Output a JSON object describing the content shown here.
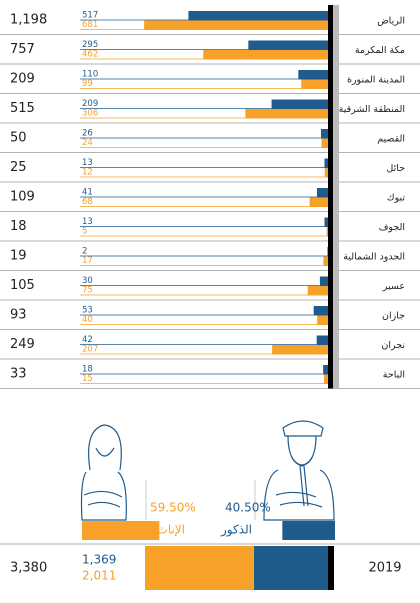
{
  "chart_data": {
    "type": "paired-bar",
    "categories": [
      "الرياض",
      "مكة المكرمة",
      "المدينة المنورة",
      "المنطقة الشرقية",
      "القصيم",
      "حائل",
      "تبوك",
      "الجوف",
      "الحدود الشمالية",
      "عسير",
      "جازان",
      "نجران",
      "الباحة"
    ],
    "totals": [
      1198,
      757,
      209,
      515,
      50,
      25,
      109,
      18,
      19,
      105,
      93,
      249,
      33
    ],
    "total_labels": [
      "1,198",
      "757",
      "209",
      "515",
      "50",
      "25",
      "109",
      "18",
      "19",
      "105",
      "93",
      "249",
      "33"
    ],
    "series": [
      {
        "name": "الذكور",
        "color": "#1f5b8c",
        "values": [
          517,
          295,
          110,
          209,
          26,
          13,
          41,
          13,
          2,
          30,
          53,
          42,
          18
        ]
      },
      {
        "name": "الإناث",
        "color": "#f7a128",
        "values": [
          681,
          462,
          99,
          306,
          24,
          12,
          68,
          5,
          17,
          75,
          40,
          207,
          15
        ]
      }
    ],
    "summary": {
      "year": "2019",
      "total": 3380,
      "total_label": "3,380",
      "values": [
        1369,
        2011
      ],
      "value_labels": [
        "1,369",
        "2,011"
      ],
      "shares": [
        40.5,
        59.5
      ],
      "share_labels": [
        "40.50%",
        "59.50%"
      ]
    }
  }
}
